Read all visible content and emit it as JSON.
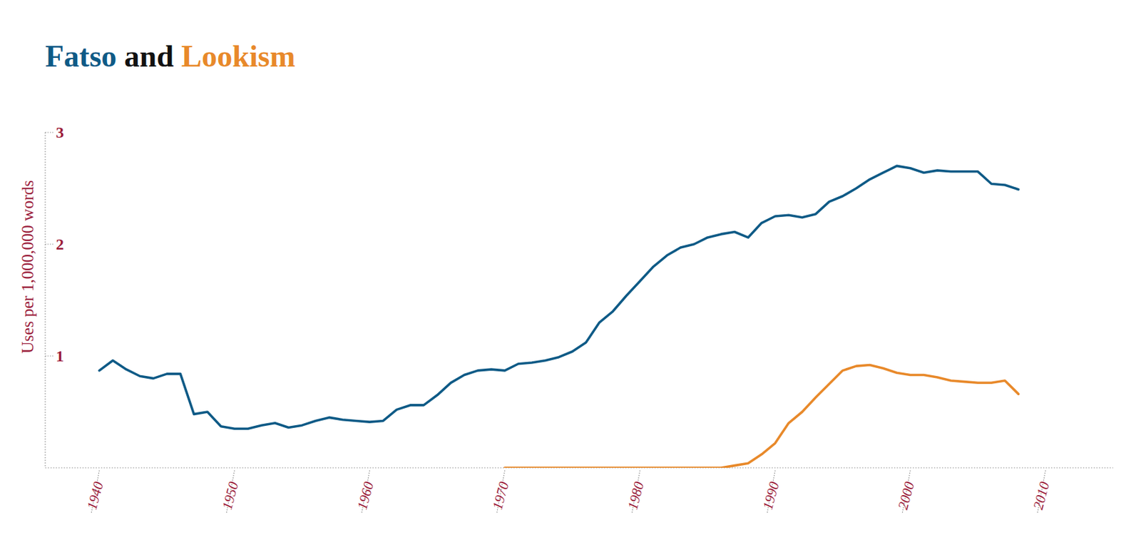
{
  "chart_data": {
    "type": "line",
    "title": "Fatso and Lookism",
    "y_label": "Uses per 1,000,000 words",
    "x": [
      1940,
      1941,
      1942,
      1943,
      1944,
      1945,
      1946,
      1947,
      1948,
      1949,
      1950,
      1951,
      1952,
      1953,
      1954,
      1955,
      1956,
      1957,
      1958,
      1959,
      1960,
      1961,
      1962,
      1963,
      1964,
      1965,
      1966,
      1967,
      1968,
      1969,
      1970,
      1971,
      1972,
      1973,
      1974,
      1975,
      1976,
      1977,
      1978,
      1979,
      1980,
      1981,
      1982,
      1983,
      1984,
      1985,
      1986,
      1987,
      1988,
      1989,
      1990,
      1991,
      1992,
      1993,
      1994,
      1995,
      1996,
      1997,
      1998,
      1999,
      2000,
      2001,
      2002,
      2003,
      2004,
      2005,
      2006,
      2007,
      2008
    ],
    "series": [
      {
        "name": "Fatso",
        "color": "#0e5a86",
        "values": [
          0.87,
          0.96,
          0.88,
          0.82,
          0.8,
          0.84,
          0.84,
          0.48,
          0.5,
          0.37,
          0.35,
          0.35,
          0.38,
          0.4,
          0.36,
          0.38,
          0.42,
          0.45,
          0.43,
          0.42,
          0.41,
          0.42,
          0.52,
          0.56,
          0.56,
          0.65,
          0.76,
          0.83,
          0.87,
          0.88,
          0.87,
          0.93,
          0.94,
          0.96,
          0.99,
          1.04,
          1.12,
          1.3,
          1.4,
          1.54,
          1.67,
          1.8,
          1.9,
          1.97,
          2.0,
          2.06,
          2.09,
          2.11,
          2.06,
          2.19,
          2.25,
          2.26,
          2.24,
          2.27,
          2.38,
          2.43,
          2.5,
          2.58,
          2.64,
          2.7,
          2.68,
          2.64,
          2.66,
          2.65,
          2.65,
          2.65,
          2.54,
          2.53,
          2.49
        ]
      },
      {
        "name": "Lookism",
        "color": "#e8892a",
        "values": [
          null,
          null,
          null,
          null,
          null,
          null,
          null,
          null,
          null,
          null,
          null,
          null,
          null,
          null,
          null,
          null,
          null,
          null,
          null,
          null,
          null,
          null,
          null,
          null,
          null,
          null,
          null,
          null,
          null,
          null,
          0,
          0,
          0,
          0,
          0,
          0,
          0,
          0,
          0,
          0,
          0,
          0,
          0,
          0,
          0,
          0,
          0,
          0.02,
          0.04,
          0.12,
          0.22,
          0.4,
          0.5,
          0.63,
          0.75,
          0.87,
          0.91,
          0.92,
          0.89,
          0.85,
          0.83,
          0.83,
          0.81,
          0.78,
          0.77,
          0.76,
          0.76,
          0.78,
          0.66
        ]
      }
    ],
    "xlim": [
      1936,
      2015
    ],
    "xticks": [
      1940,
      1950,
      1960,
      1970,
      1980,
      1990,
      2000,
      2010
    ],
    "ylim": [
      0,
      3
    ],
    "yticks": [
      1,
      2,
      3
    ],
    "grid": false
  }
}
